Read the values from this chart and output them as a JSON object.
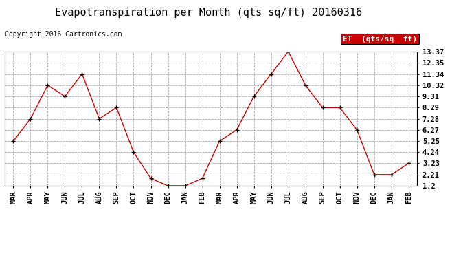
{
  "title": "Evapotranspiration per Month (qts sq/ft) 20160316",
  "copyright": "Copyright 2016 Cartronics.com",
  "legend_label": "ET  (qts/sq  ft)",
  "x_labels": [
    "MAR",
    "APR",
    "MAY",
    "JUN",
    "JUL",
    "AUG",
    "SEP",
    "OCT",
    "NOV",
    "DEC",
    "JAN",
    "FEB",
    "MAR",
    "APR",
    "MAY",
    "JUN",
    "JUL",
    "AUG",
    "SEP",
    "OCT",
    "NOV",
    "DEC",
    "JAN",
    "FEB"
  ],
  "y_values": [
    5.25,
    7.28,
    10.32,
    9.31,
    11.34,
    7.28,
    8.29,
    4.24,
    1.87,
    1.2,
    1.2,
    1.87,
    5.25,
    6.27,
    9.31,
    11.34,
    13.37,
    10.32,
    8.29,
    8.29,
    6.27,
    2.21,
    2.21,
    3.23
  ],
  "y_ticks": [
    1.2,
    2.21,
    3.23,
    4.24,
    5.25,
    6.27,
    7.28,
    8.29,
    9.31,
    10.32,
    11.34,
    12.35,
    13.37
  ],
  "ylim": [
    1.2,
    13.37
  ],
  "line_color": "#cc0000",
  "marker": "+",
  "marker_color": "#000000",
  "bg_color": "#ffffff",
  "grid_color": "#aaaaaa",
  "legend_bg": "#cc0000",
  "legend_text_color": "#ffffff",
  "title_fontsize": 11,
  "copyright_fontsize": 7,
  "tick_fontsize": 7.5,
  "legend_fontsize": 8
}
